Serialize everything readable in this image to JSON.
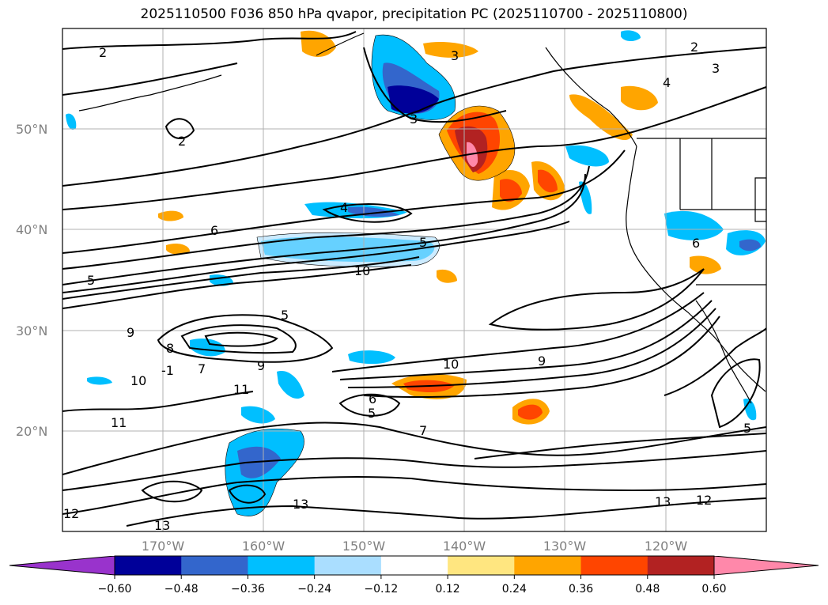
{
  "title": "2025110500 F036 850 hPa qvapor, precipitation PC (2025110700 - 2025110800)",
  "map": {
    "lat_labels": [
      "50°N",
      "40°N",
      "30°N",
      "20°N"
    ],
    "lon_labels": [
      "170°W",
      "160°W",
      "150°W",
      "140°W",
      "130°W",
      "120°W"
    ]
  },
  "colorbar": {
    "tick_labels": [
      "−0.60",
      "−0.48",
      "−0.36",
      "−0.24",
      "−0.12",
      "0.12",
      "0.24",
      "0.36",
      "0.48",
      "0.60"
    ],
    "colors": [
      "#9933cc",
      "#000099",
      "#3366cc",
      "#00bfff",
      "#aadeff",
      "#ffffff",
      "#ffe680",
      "#ffa500",
      "#ff4500",
      "#b22222",
      "#ff88aa"
    ]
  },
  "contour_labels": [
    "2",
    "3",
    "4",
    "5",
    "6",
    "7",
    "8",
    "9",
    "10",
    "11",
    "12",
    "13",
    "-1"
  ],
  "colors": {
    "land_outline": "#000000",
    "contour": "#000000",
    "grid": "#b0b0b0",
    "axis_label": "#808080"
  }
}
